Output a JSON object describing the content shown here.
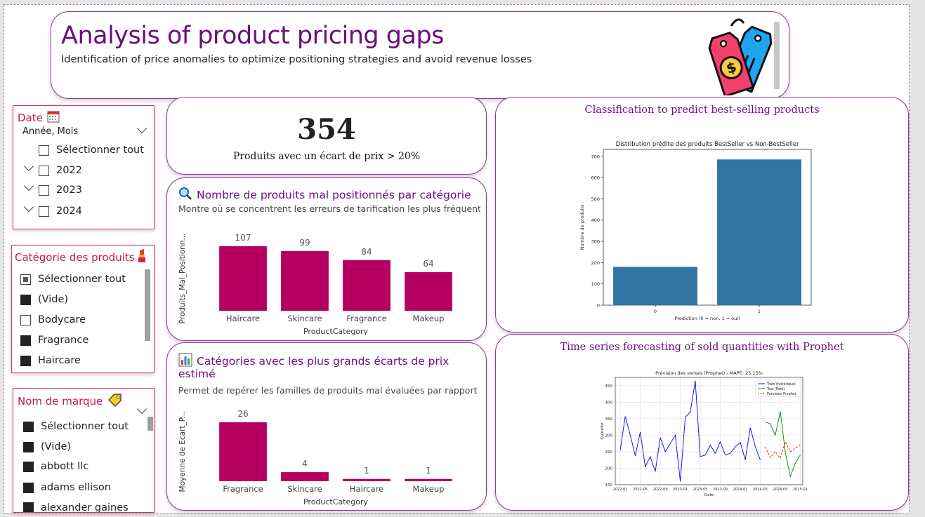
{
  "header": {
    "title": "Analysis of product pricing gaps",
    "subtitle": "Identification of price anomalies to optimize positioning strategies and avoid revenue losses"
  },
  "date_slicer": {
    "title": "Date",
    "icon": "calendar-icon",
    "hierarchy": "Année, Mois",
    "items": [
      {
        "label": "Sélectionner tout",
        "checked": false,
        "expandable": false
      },
      {
        "label": "2022",
        "checked": false,
        "expandable": true
      },
      {
        "label": "2023",
        "checked": false,
        "expandable": true
      },
      {
        "label": "2024",
        "checked": false,
        "expandable": true
      }
    ]
  },
  "category_slicer": {
    "title": "Catégorie des produits",
    "icon": "lipstick-icon",
    "items": [
      {
        "label": "Sélectionner tout",
        "state": "partial"
      },
      {
        "label": "(Vide)",
        "state": "checked"
      },
      {
        "label": "Bodycare",
        "state": "unchecked"
      },
      {
        "label": "Fragrance",
        "state": "checked"
      },
      {
        "label": "Haircare",
        "state": "checked"
      }
    ]
  },
  "brand_slicer": {
    "title": "Nom de marque",
    "icon": "tag-icon",
    "items": [
      {
        "label": "Sélectionner tout",
        "state": "checked"
      },
      {
        "label": "(Vide)",
        "state": "checked"
      },
      {
        "label": "abbott llc",
        "state": "checked"
      },
      {
        "label": "adams ellison",
        "state": "checked"
      },
      {
        "label": "alexander gaines",
        "state": "checked"
      }
    ]
  },
  "kpi": {
    "value": "354",
    "label": "Produits avec un écart de prix > 20%"
  },
  "chart1": {
    "icon": "magnifier-icon",
    "title": "Nombre de produits mal positionnés par catégorie",
    "subtitle": "Montre où se concentrent les erreurs de tarification les plus fréquentes"
  },
  "chart2": {
    "icon": "bar-chart-icon",
    "title_line1": "Catégories avec les plus grands écarts de prix",
    "title_line2": "estimé",
    "subtitle": "Permet de repérer les familles de produits mal évaluées par rapport à l..."
  },
  "classification": {
    "title": "Classification to predict best-selling products"
  },
  "forecast": {
    "title": "Time series forecasting of sold quantities with Prophet"
  },
  "colors": {
    "accent_purple": "#6b0f7d",
    "bar_magenta": "#b5005f",
    "bar_blue": "#3274a1",
    "slicer_pink": "#c2185b"
  },
  "chart_data": [
    {
      "type": "bar",
      "categories": [
        "Haircare",
        "Skincare",
        "Fragrance",
        "Makeup"
      ],
      "values": [
        107,
        99,
        84,
        64
      ],
      "xlabel": "ProductCategory",
      "ylabel": "Produits_Mal_Positionn..."
    },
    {
      "type": "bar",
      "categories": [
        "Fragrance",
        "Skincare",
        "Haircare",
        "Makeup"
      ],
      "values": [
        26,
        4,
        1,
        1
      ],
      "xlabel": "ProductCategory",
      "ylabel": "Moyenne de Ecart_P..."
    },
    {
      "type": "bar",
      "title": "Distribution prédite des produits BestSeller vs Non-BestSeller",
      "categories": [
        "0",
        "1"
      ],
      "values": [
        180,
        685
      ],
      "xlabel": "Prediction (0 = non, 1 = oui)",
      "ylabel": "Nombre de produits",
      "ylim": [
        0,
        700
      ],
      "yticks": [
        0,
        100,
        200,
        300,
        400,
        500,
        600,
        700
      ]
    },
    {
      "type": "line",
      "title": "Prévision des ventes (Prophet) - MAPE: 25.15%",
      "xlabel": "Date",
      "ylabel": "Quantité",
      "ylim": [
        150,
        475
      ],
      "yticks": [
        150,
        200,
        250,
        300,
        350,
        400,
        450
      ],
      "xticks": [
        "2022-01",
        "2022-05",
        "2022-09",
        "2023-01",
        "2023-05",
        "2023-09",
        "2024-01",
        "2024-05",
        "2024-09",
        "2025-01"
      ],
      "x_range": [
        "2022-01",
        "2025-01"
      ],
      "series": [
        {
          "name": "Train (historique)",
          "color": "#0000ff",
          "style": "solid",
          "x": [
            "2022-01",
            "2022-02",
            "2022-03",
            "2022-04",
            "2022-05",
            "2022-06",
            "2022-07",
            "2022-08",
            "2022-09",
            "2022-10",
            "2022-11",
            "2022-12",
            "2023-01",
            "2023-02",
            "2023-03",
            "2023-04",
            "2023-05",
            "2023-06",
            "2023-07",
            "2023-08",
            "2023-09",
            "2023-10",
            "2023-11",
            "2023-12",
            "2024-01",
            "2024-02",
            "2024-03",
            "2024-04",
            "2024-05"
          ],
          "y": [
            255,
            357,
            300,
            238,
            310,
            205,
            235,
            190,
            293,
            250,
            275,
            300,
            160,
            355,
            370,
            465,
            235,
            240,
            270,
            245,
            280,
            240,
            245,
            265,
            278,
            225,
            323,
            265,
            225
          ]
        },
        {
          "name": "Test (Réel)",
          "color": "#008000",
          "style": "solid",
          "x": [
            "2024-06",
            "2024-07",
            "2024-08",
            "2024-09",
            "2024-10",
            "2024-11",
            "2024-12",
            "2025-01"
          ],
          "y": [
            340,
            335,
            300,
            372,
            248,
            175,
            215,
            240
          ]
        },
        {
          "name": "Prévision Prophet",
          "color": "#ff0000",
          "style": "dashed",
          "x": [
            "2024-06",
            "2024-07",
            "2024-08",
            "2024-09",
            "2024-10",
            "2024-11",
            "2024-12",
            "2025-01"
          ],
          "y": [
            265,
            232,
            250,
            230,
            280,
            250,
            260,
            272
          ]
        }
      ]
    }
  ]
}
